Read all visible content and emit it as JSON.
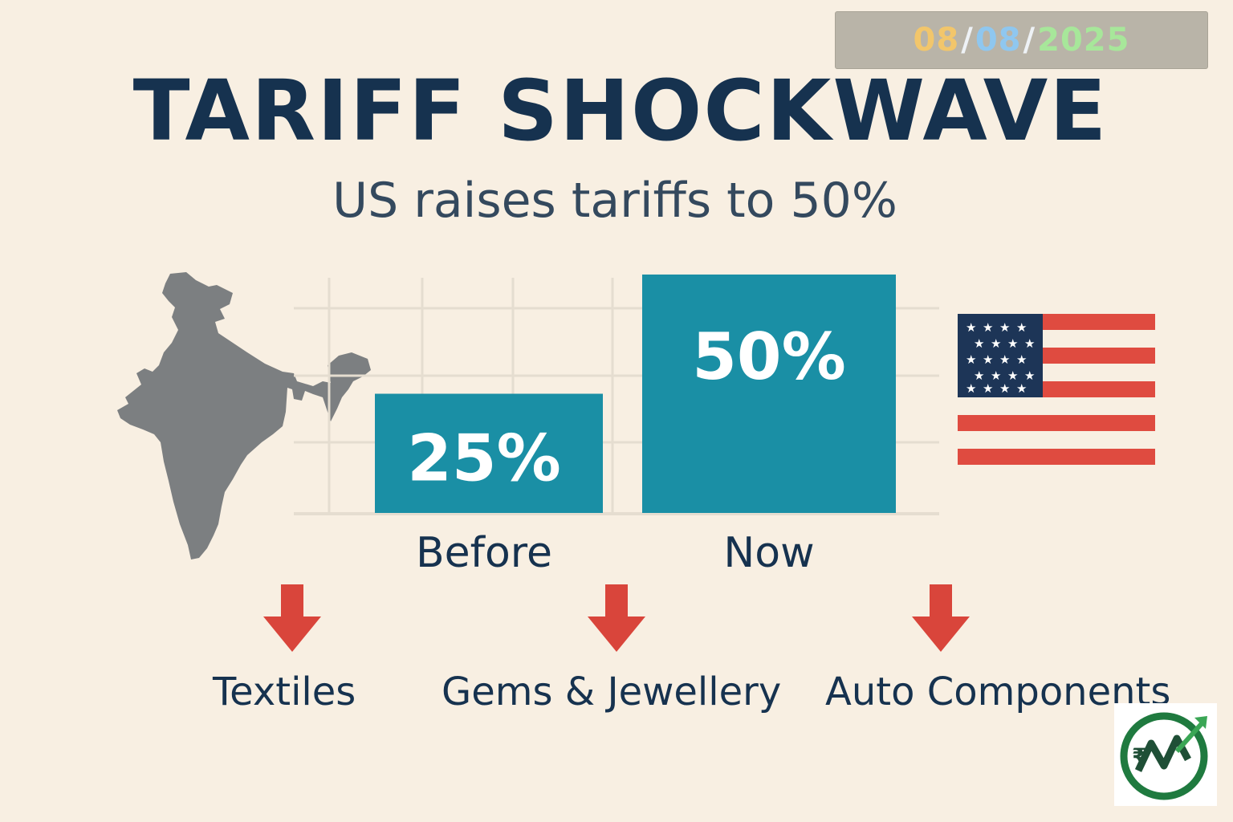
{
  "date": {
    "day": "08",
    "month": "08",
    "year": "2025",
    "separator": "/"
  },
  "title": "TARIFF SHOCKWAVE",
  "subtitle": "US raises tariffs to 50%",
  "colors": {
    "background": "#f8efe2",
    "bar": "#1a8fa5",
    "title": "#16324f",
    "arrow": "#d9453b",
    "map": "#7c7f81"
  },
  "chart_data": {
    "type": "bar",
    "title": "",
    "xlabel": "",
    "ylabel": "",
    "categories": [
      "Before",
      "Now"
    ],
    "values": [
      25,
      50
    ],
    "data_labels": [
      "25%",
      "50%"
    ],
    "ylim": [
      0,
      50
    ],
    "grid": true
  },
  "icons": {
    "left": "india-map-icon",
    "right": "us-flag-icon",
    "logo": "rupee-growth-logo-icon"
  },
  "sectors": [
    {
      "label": "Textiles",
      "trend": "down"
    },
    {
      "label": "Gems & Jewellery",
      "trend": "down"
    },
    {
      "label": "Auto Components",
      "trend": "down"
    }
  ]
}
